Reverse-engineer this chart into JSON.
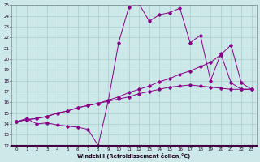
{
  "xlabel": "Windchill (Refroidissement éolien,°C)",
  "bg_color": "#cce8e8",
  "grid_color": "#aacccc",
  "line_color": "#880088",
  "xlim": [
    -0.5,
    23.5
  ],
  "ylim": [
    12,
    25
  ],
  "xticks": [
    0,
    1,
    2,
    3,
    4,
    5,
    6,
    7,
    8,
    9,
    10,
    11,
    12,
    13,
    14,
    15,
    16,
    17,
    18,
    19,
    20,
    21,
    22,
    23
  ],
  "yticks": [
    12,
    13,
    14,
    15,
    16,
    17,
    18,
    19,
    20,
    21,
    22,
    23,
    24,
    25
  ],
  "series": [
    {
      "x": [
        0,
        1,
        2,
        3,
        4,
        5,
        6,
        7,
        8,
        9,
        10,
        11,
        12,
        13,
        14,
        15,
        16,
        17,
        18,
        19,
        20,
        21,
        22,
        23
      ],
      "y": [
        14.2,
        14.5,
        14.0,
        14.1,
        13.9,
        13.8,
        13.7,
        13.5,
        12.0,
        16.2,
        21.5,
        24.8,
        25.1,
        23.5,
        24.1,
        24.3,
        24.7,
        21.5,
        22.2,
        18.0,
        20.5,
        17.8,
        17.2,
        17.2
      ]
    },
    {
      "x": [
        0,
        1,
        2,
        3,
        4,
        5,
        6,
        7,
        8,
        9,
        10,
        11,
        12,
        13,
        14,
        15,
        16,
        17,
        18,
        19,
        20,
        21,
        22,
        23
      ],
      "y": [
        14.2,
        14.4,
        14.5,
        14.7,
        15.0,
        15.2,
        15.5,
        15.7,
        15.9,
        16.2,
        16.5,
        16.9,
        17.2,
        17.5,
        17.9,
        18.2,
        18.6,
        18.9,
        19.3,
        19.7,
        20.4,
        21.3,
        17.8,
        17.2
      ]
    },
    {
      "x": [
        0,
        1,
        2,
        3,
        4,
        5,
        6,
        7,
        8,
        9,
        10,
        11,
        12,
        13,
        14,
        15,
        16,
        17,
        18,
        19,
        20,
        21,
        22,
        23
      ],
      "y": [
        14.2,
        14.4,
        14.5,
        14.7,
        15.0,
        15.2,
        15.5,
        15.7,
        15.9,
        16.1,
        16.3,
        16.5,
        16.8,
        17.0,
        17.2,
        17.4,
        17.5,
        17.6,
        17.5,
        17.4,
        17.3,
        17.2,
        17.2,
        17.2
      ]
    }
  ]
}
